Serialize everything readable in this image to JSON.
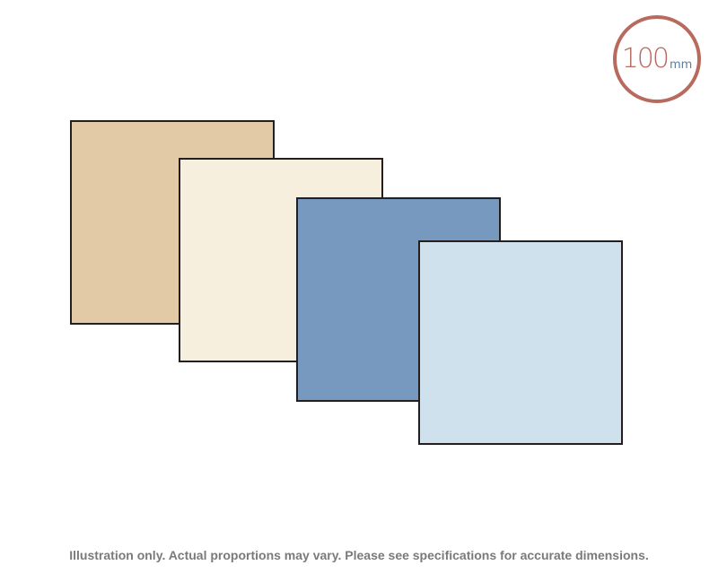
{
  "badge": {
    "value": "100",
    "unit": "mm",
    "ring_color": "#b86a5e",
    "unit_color": "#5f7e9a"
  },
  "swatches": [
    {
      "name": "tan",
      "color": "#e2caa7"
    },
    {
      "name": "cream",
      "color": "#f7efdd"
    },
    {
      "name": "steel-blue",
      "color": "#7899bf"
    },
    {
      "name": "pale-blue",
      "color": "#cfe1ec"
    }
  ],
  "border_color": "#231f20",
  "disclaimer": "Illustration only. Actual proportions may vary. Please see specifications for accurate dimensions."
}
